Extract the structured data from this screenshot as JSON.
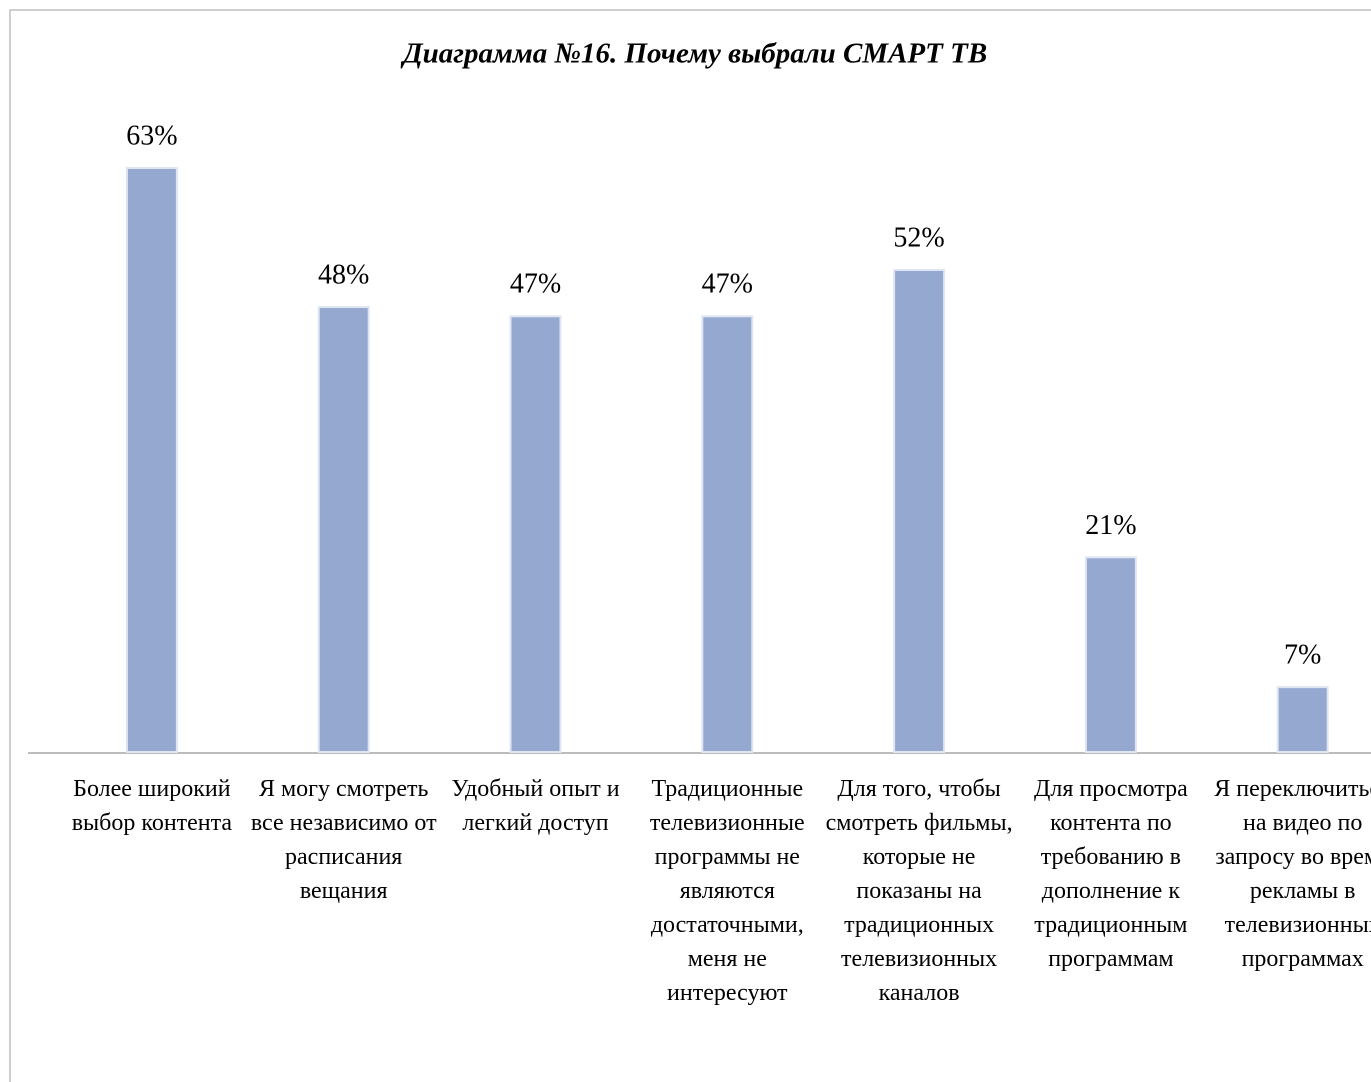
{
  "chart_data": {
    "type": "bar",
    "title": "Диаграмма №16. Почему выбрали СМАРТ ТВ",
    "categories": [
      "Более широкий выбор контента",
      "Я могу смотреть все независимо от расписания вещания",
      "Удобный опыт и легкий доступ",
      "Традиционные телевизионные программы не являются достаточными, меня не интересуют",
      "Для того, чтобы смотреть фильмы, которые не показаны на традиционных телевизионных каналов",
      "Для просмотра контента по требованию в дополнение к традиционным программам",
      "Я переключиться на видео по запросу во время рекламы в телевизионных программах"
    ],
    "values": [
      63,
      48,
      47,
      47,
      52,
      21,
      7
    ],
    "value_labels": [
      "63%",
      "48%",
      "47%",
      "47%",
      "52%",
      "21%",
      "7%"
    ],
    "color": "#95a9d0"
  }
}
